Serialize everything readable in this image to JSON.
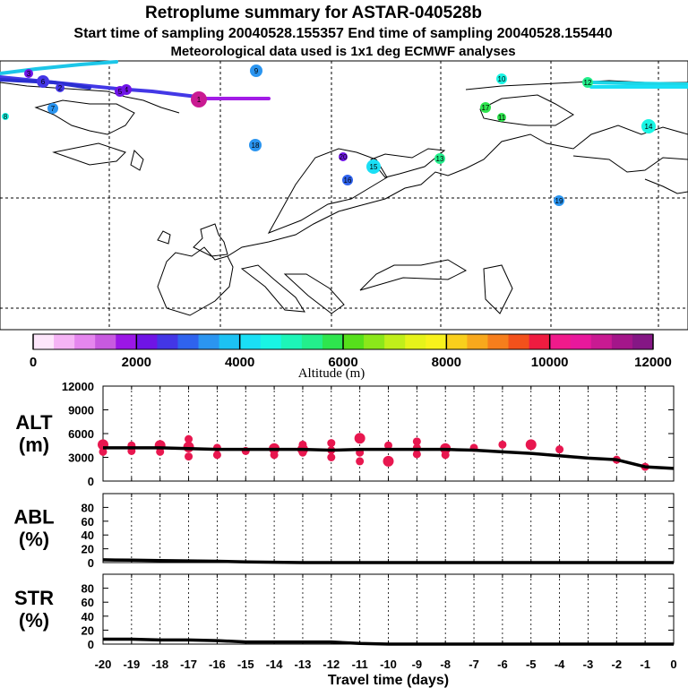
{
  "titles": {
    "line1": "Retroplume summary for ASTAR-040528b",
    "line2": "Start time of sampling 20040528.155357     End time of sampling 20040528.155440",
    "line3": "Meteorological data used is 1x1 deg ECMWF analyses"
  },
  "colors": {
    "background": "#ffffff",
    "line": "#000000",
    "alt_point": "#e8174f"
  },
  "colorbar": {
    "title": "Altitude (m)",
    "tick_labels": [
      "0",
      "2000",
      "4000",
      "6000",
      "8000",
      "10000",
      "12000"
    ],
    "colors": [
      "#fde6fb",
      "#f5b4f5",
      "#e586ee",
      "#c85ae0",
      "#9b17e6",
      "#6f14e6",
      "#4336e6",
      "#2f63ee",
      "#2b95f0",
      "#1cc2f3",
      "#1adff5",
      "#19f5e4",
      "#1df5b8",
      "#23ef8c",
      "#2ee54e",
      "#56e01b",
      "#8be71a",
      "#c0ef1a",
      "#e6f31a",
      "#f8f21c",
      "#f9cf1c",
      "#f8a81c",
      "#f67e1c",
      "#f3511b",
      "#ef1c40",
      "#f01a8b",
      "#e8189c",
      "#c91a92",
      "#a4168a",
      "#851785"
    ]
  },
  "map": {
    "trajectory_labels": [
      "1",
      "2",
      "3",
      "4",
      "5",
      "6",
      "7",
      "8",
      "9",
      "10",
      "11",
      "12",
      "13",
      "14",
      "15",
      "16",
      "17",
      "18",
      "19",
      "20"
    ],
    "cluster_labels": [
      {
        "label": "1",
        "altitude_m": 11000
      },
      {
        "label": "2",
        "altitude_m": 2500
      },
      {
        "label": "3",
        "altitude_m": 2200
      },
      {
        "label": "4",
        "altitude_m": 2100
      },
      {
        "label": "5",
        "altitude_m": 2200
      },
      {
        "label": "6",
        "altitude_m": 2400
      },
      {
        "label": "7",
        "altitude_m": 3200
      },
      {
        "label": "8",
        "altitude_m": 4500
      },
      {
        "label": "9",
        "altitude_m": 3300
      },
      {
        "label": "10",
        "altitude_m": 4600
      },
      {
        "label": "11",
        "altitude_m": 5600
      },
      {
        "label": "12",
        "altitude_m": 5500
      },
      {
        "label": "13",
        "altitude_m": 5400
      },
      {
        "label": "14",
        "altitude_m": 4400
      },
      {
        "label": "15",
        "altitude_m": 4300
      },
      {
        "label": "16",
        "altitude_m": 3000
      },
      {
        "label": "17",
        "altitude_m": 5800
      },
      {
        "label": "18",
        "altitude_m": 3300
      },
      {
        "label": "19",
        "altitude_m": 3500
      },
      {
        "label": "20",
        "altitude_m": 2200
      }
    ]
  },
  "chart_data": [
    {
      "type": "line",
      "panel_label": "ALT",
      "unit_label": "(m)",
      "x": [
        0,
        -1,
        -2,
        -3,
        -4,
        -5,
        -6,
        -7,
        -8,
        -9,
        -10,
        -11,
        -12,
        -13,
        -14,
        -15,
        -16,
        -17,
        -18,
        -19,
        -20
      ],
      "series": [
        {
          "name": "median altitude",
          "values": [
            1600,
            1800,
            2700,
            2900,
            3200,
            3500,
            3700,
            3900,
            4000,
            4000,
            4000,
            4000,
            3900,
            4000,
            4000,
            4000,
            4000,
            4100,
            4200,
            4200,
            4200
          ]
        }
      ],
      "scatter": {
        "name": "cluster altitudes",
        "x": [
          -20,
          -20,
          -19,
          -19,
          -18,
          -18,
          -17,
          -17,
          -17,
          -16,
          -16,
          -15,
          -14,
          -14,
          -13,
          -13,
          -13,
          -12,
          -12,
          -12,
          -11,
          -11,
          -11,
          -10,
          -10,
          -9,
          -9,
          -9,
          -8,
          -8,
          -7,
          -6,
          -5,
          -4,
          -2,
          -1
        ],
        "y": [
          4600,
          3700,
          4500,
          3800,
          4500,
          3700,
          5300,
          3100,
          4300,
          4200,
          3300,
          3800,
          4100,
          3300,
          4600,
          3600,
          4000,
          4800,
          3000,
          3900,
          5400,
          2500,
          3600,
          4500,
          2500,
          5000,
          3400,
          4200,
          4100,
          3300,
          4200,
          4600,
          4600,
          4000,
          2700,
          1800
        ]
      },
      "ylim": [
        0,
        12000
      ],
      "yticks": [
        0,
        3000,
        6000,
        9000,
        12000
      ]
    },
    {
      "type": "line",
      "panel_label": "ABL",
      "unit_label": "(%)",
      "x": [
        0,
        -1,
        -2,
        -3,
        -4,
        -5,
        -6,
        -7,
        -8,
        -9,
        -10,
        -11,
        -12,
        -13,
        -14,
        -15,
        -16,
        -17,
        -18,
        -19,
        -20
      ],
      "series": [
        {
          "name": "fraction in ABL",
          "values": [
            0,
            0,
            0,
            0,
            0,
            0,
            0,
            0,
            0,
            0,
            0,
            0,
            0,
            0,
            0.5,
            1,
            2,
            2.5,
            3,
            3.5,
            4
          ]
        }
      ],
      "ylim": [
        0,
        100
      ],
      "yticks": [
        0,
        20,
        40,
        60,
        80
      ]
    },
    {
      "type": "line",
      "panel_label": "STR",
      "unit_label": "(%)",
      "x": [
        0,
        -1,
        -2,
        -3,
        -4,
        -5,
        -6,
        -7,
        -8,
        -9,
        -10,
        -11,
        -12,
        -13,
        -14,
        -15,
        -16,
        -17,
        -18,
        -19,
        -20
      ],
      "series": [
        {
          "name": "fraction in stratosphere",
          "values": [
            0,
            0,
            0,
            0,
            0,
            0,
            0,
            0,
            0,
            0,
            0,
            1,
            3,
            3,
            3,
            3,
            5,
            6,
            6,
            7,
            7
          ]
        }
      ],
      "ylim": [
        0,
        100
      ],
      "yticks": [
        0,
        20,
        40,
        60,
        80
      ],
      "xlabel": "Travel time (days)",
      "xtick_labels": [
        "-20",
        "-19",
        "-18",
        "-17",
        "-16",
        "-15",
        "-14",
        "-13",
        "-12",
        "-11",
        "-10",
        "-9",
        "-8",
        "-7",
        "-6",
        "-5",
        "-4",
        "-3",
        "-2",
        "-1",
        "0"
      ]
    }
  ]
}
